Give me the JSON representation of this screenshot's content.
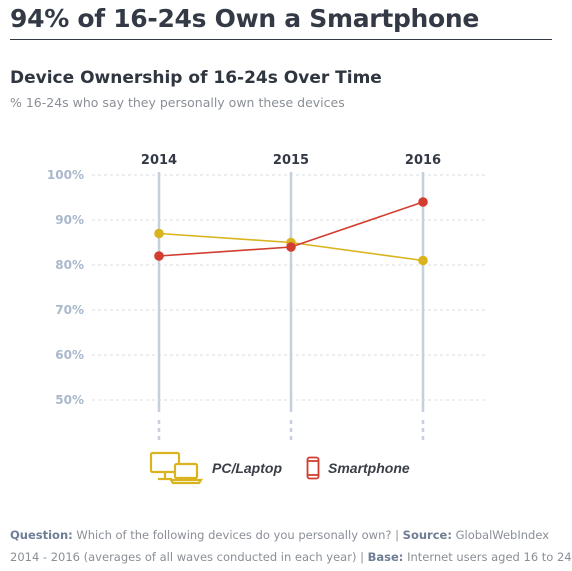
{
  "header": {
    "headline": "94% of 16-24s Own a Smartphone"
  },
  "chart_data": {
    "type": "line",
    "title": "Device Ownership of 16-24s Over Time",
    "subtitle": "% 16-24s who say they personally own these devices",
    "x": [
      "2014",
      "2015",
      "2016"
    ],
    "y_ticks": [
      "100%",
      "90%",
      "80%",
      "70%",
      "60%",
      "50%"
    ],
    "ylim": [
      50,
      100
    ],
    "grid": true,
    "legend_position": "bottom",
    "series": [
      {
        "name": "PC/Laptop",
        "values": [
          87,
          85,
          81
        ],
        "color": "#d9b41e",
        "icon": "pc-laptop-icon"
      },
      {
        "name": "Smartphone",
        "values": [
          82,
          84,
          94
        ],
        "color": "#d23d2f",
        "icon": "smartphone-icon"
      }
    ]
  },
  "footer": {
    "question_label": "Question:",
    "question_text": "Which of the following devices do you personally own?",
    "separator": "|",
    "source_label": "Source:",
    "source_text_line1": "GlobalWebIndex",
    "source_text_line2": "2014 - 2016 (averages of all waves conducted in each year)",
    "base_label": "Base:",
    "base_text": "Internet users aged 16 to 24"
  },
  "colors": {
    "pc_laptop": "#d9b41e",
    "smartphone": "#d23d2f",
    "axis_line": "#c5d0dc",
    "gridline": "#d9dde2",
    "text_dark": "#333a45",
    "text_muted": "#8a8f96",
    "tick_label": "#a9b8cc"
  }
}
